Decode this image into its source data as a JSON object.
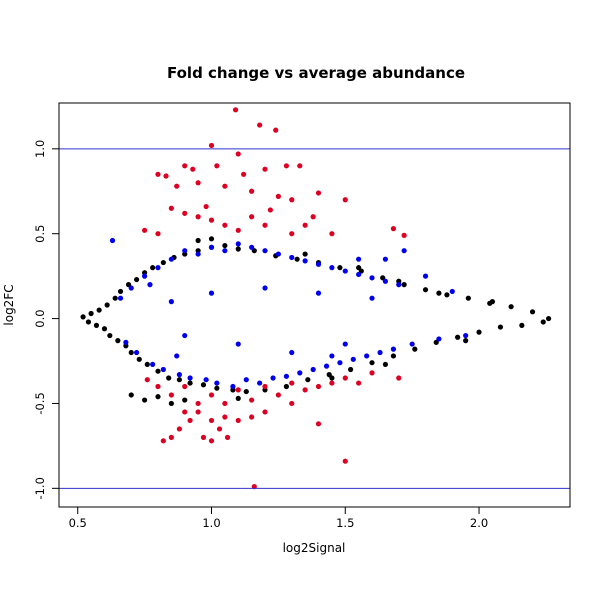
{
  "chart_data": {
    "type": "scatter",
    "title": "Fold change vs average abundance",
    "xlabel": "log2Signal",
    "ylabel": "log2FC",
    "xlim": [
      0.43,
      2.34
    ],
    "ylim": [
      -1.11,
      1.27
    ],
    "x_ticks": [
      0.5,
      1.0,
      1.5,
      2.0
    ],
    "y_ticks": [
      -1.0,
      -0.5,
      0.0,
      0.5,
      1.0
    ],
    "x_tick_labels": [
      "0.5",
      "1.0",
      "1.5",
      "2.0"
    ],
    "y_tick_labels": [
      "-1.0",
      "-0.5",
      "0.0",
      "0.5",
      "1.0"
    ],
    "reference_lines": [
      {
        "axis": "y",
        "value": 1.0,
        "color": "#3333cc"
      },
      {
        "axis": "y",
        "value": -1.0,
        "color": "#3333cc"
      }
    ],
    "grid": false,
    "legend": "none",
    "series": [
      {
        "color": "#000000",
        "description_of_density": "dense band around 0",
        "points": [
          [
            0.52,
            0.01
          ],
          [
            0.54,
            -0.02
          ],
          [
            0.55,
            0.03
          ],
          [
            0.57,
            -0.04
          ],
          [
            0.58,
            0.05
          ],
          [
            0.6,
            -0.06
          ],
          [
            0.61,
            0.08
          ],
          [
            0.62,
            -0.1
          ],
          [
            0.64,
            0.12
          ],
          [
            0.65,
            -0.13
          ],
          [
            0.66,
            0.16
          ],
          [
            0.68,
            -0.16
          ],
          [
            0.69,
            0.2
          ],
          [
            0.7,
            -0.2
          ],
          [
            0.72,
            0.23
          ],
          [
            0.73,
            -0.24
          ],
          [
            0.75,
            0.27
          ],
          [
            0.76,
            -0.27
          ],
          [
            0.78,
            0.3
          ],
          [
            0.8,
            -0.31
          ],
          [
            0.82,
            0.33
          ],
          [
            0.84,
            -0.35
          ],
          [
            0.86,
            0.36
          ],
          [
            0.88,
            -0.36
          ],
          [
            0.9,
            0.38
          ],
          [
            0.92,
            -0.38
          ],
          [
            0.95,
            0.4
          ],
          [
            0.97,
            -0.39
          ],
          [
            1.0,
            0.42
          ],
          [
            1.02,
            -0.41
          ],
          [
            1.05,
            0.43
          ],
          [
            1.08,
            -0.42
          ],
          [
            1.1,
            0.41
          ],
          [
            1.13,
            -0.43
          ],
          [
            1.16,
            0.4
          ],
          [
            1.2,
            -0.42
          ],
          [
            1.24,
            0.37
          ],
          [
            1.28,
            -0.4
          ],
          [
            1.32,
            0.35
          ],
          [
            1.36,
            -0.36
          ],
          [
            1.4,
            0.33
          ],
          [
            1.44,
            -0.33
          ],
          [
            1.48,
            0.3
          ],
          [
            1.52,
            -0.3
          ],
          [
            1.56,
            0.28
          ],
          [
            1.6,
            -0.26
          ],
          [
            1.64,
            0.24
          ],
          [
            1.68,
            -0.22
          ],
          [
            1.72,
            0.2
          ],
          [
            1.76,
            -0.18
          ],
          [
            1.8,
            0.17
          ],
          [
            1.84,
            -0.14
          ],
          [
            1.88,
            0.14
          ],
          [
            1.92,
            -0.11
          ],
          [
            1.96,
            0.12
          ],
          [
            2.0,
            -0.08
          ],
          [
            2.04,
            0.09
          ],
          [
            2.08,
            -0.05
          ],
          [
            2.12,
            0.07
          ],
          [
            2.16,
            -0.04
          ],
          [
            2.2,
            0.04
          ],
          [
            2.24,
            -0.02
          ],
          [
            2.26,
            0.0
          ],
          [
            0.7,
            -0.45
          ],
          [
            0.75,
            -0.48
          ],
          [
            0.8,
            -0.46
          ],
          [
            0.85,
            -0.5
          ],
          [
            0.9,
            -0.48
          ],
          [
            1.1,
            -0.47
          ],
          [
            1.0,
            0.47
          ],
          [
            0.95,
            0.46
          ],
          [
            1.7,
            0.22
          ],
          [
            1.85,
            0.15
          ],
          [
            1.95,
            -0.13
          ],
          [
            2.05,
            0.1
          ],
          [
            1.65,
            -0.27
          ],
          [
            1.35,
            0.38
          ],
          [
            1.45,
            -0.35
          ],
          [
            1.55,
            0.3
          ]
        ]
      },
      {
        "color": "#0000ee",
        "description_of_density": "moderate fold changes",
        "points": [
          [
            0.63,
            0.46
          ],
          [
            0.66,
            0.12
          ],
          [
            0.68,
            -0.14
          ],
          [
            0.7,
            0.18
          ],
          [
            0.72,
            -0.2
          ],
          [
            0.75,
            0.25
          ],
          [
            0.78,
            -0.27
          ],
          [
            0.8,
            0.3
          ],
          [
            0.82,
            -0.3
          ],
          [
            0.85,
            0.35
          ],
          [
            0.88,
            -0.33
          ],
          [
            0.9,
            0.4
          ],
          [
            0.92,
            -0.35
          ],
          [
            0.95,
            0.38
          ],
          [
            0.98,
            -0.36
          ],
          [
            1.0,
            0.42
          ],
          [
            1.02,
            -0.38
          ],
          [
            1.05,
            0.4
          ],
          [
            1.08,
            -0.4
          ],
          [
            1.1,
            0.44
          ],
          [
            1.13,
            -0.36
          ],
          [
            1.15,
            0.42
          ],
          [
            1.18,
            -0.38
          ],
          [
            1.2,
            0.4
          ],
          [
            1.23,
            -0.35
          ],
          [
            1.25,
            0.38
          ],
          [
            1.28,
            -0.34
          ],
          [
            1.3,
            0.36
          ],
          [
            1.33,
            -0.32
          ],
          [
            1.35,
            0.34
          ],
          [
            1.38,
            -0.3
          ],
          [
            1.4,
            0.32
          ],
          [
            1.43,
            -0.28
          ],
          [
            1.45,
            0.3
          ],
          [
            1.48,
            -0.26
          ],
          [
            1.5,
            0.28
          ],
          [
            1.53,
            -0.24
          ],
          [
            1.55,
            0.26
          ],
          [
            1.58,
            -0.22
          ],
          [
            1.6,
            0.24
          ],
          [
            1.63,
            -0.2
          ],
          [
            1.65,
            0.22
          ],
          [
            1.68,
            -0.18
          ],
          [
            1.7,
            0.2
          ],
          [
            1.72,
            0.4
          ],
          [
            1.75,
            -0.15
          ],
          [
            1.8,
            0.25
          ],
          [
            1.85,
            -0.12
          ],
          [
            1.9,
            0.16
          ],
          [
            1.95,
            -0.1
          ],
          [
            0.85,
            0.1
          ],
          [
            0.9,
            -0.1
          ],
          [
            1.0,
            0.15
          ],
          [
            1.1,
            -0.15
          ],
          [
            1.2,
            0.18
          ],
          [
            1.3,
            -0.2
          ],
          [
            1.4,
            0.15
          ],
          [
            1.5,
            -0.15
          ],
          [
            1.6,
            0.12
          ],
          [
            1.45,
            -0.22
          ],
          [
            1.55,
            0.35
          ],
          [
            1.65,
            0.35
          ],
          [
            0.77,
            0.2
          ],
          [
            0.87,
            -0.22
          ]
        ]
      },
      {
        "color": "#dd0022",
        "description_of_density": "large fold changes",
        "points": [
          [
            1.09,
            1.23
          ],
          [
            1.18,
            1.14
          ],
          [
            1.24,
            1.11
          ],
          [
            1.0,
            1.02
          ],
          [
            1.1,
            0.97
          ],
          [
            0.9,
            0.9
          ],
          [
            0.93,
            0.88
          ],
          [
            1.02,
            0.9
          ],
          [
            1.12,
            0.85
          ],
          [
            1.2,
            0.88
          ],
          [
            1.28,
            0.9
          ],
          [
            1.33,
            0.9
          ],
          [
            0.8,
            0.85
          ],
          [
            0.83,
            0.84
          ],
          [
            0.87,
            0.78
          ],
          [
            0.95,
            0.8
          ],
          [
            1.05,
            0.78
          ],
          [
            1.15,
            0.75
          ],
          [
            1.25,
            0.72
          ],
          [
            1.3,
            0.7
          ],
          [
            1.4,
            0.74
          ],
          [
            1.5,
            0.7
          ],
          [
            0.85,
            0.65
          ],
          [
            0.9,
            0.62
          ],
          [
            0.95,
            0.6
          ],
          [
            1.0,
            0.58
          ],
          [
            1.05,
            0.55
          ],
          [
            1.1,
            0.52
          ],
          [
            1.15,
            0.6
          ],
          [
            1.2,
            0.55
          ],
          [
            1.3,
            0.5
          ],
          [
            1.35,
            0.55
          ],
          [
            1.45,
            0.5
          ],
          [
            0.75,
            0.52
          ],
          [
            0.8,
            0.5
          ],
          [
            1.68,
            0.53
          ],
          [
            1.72,
            0.49
          ],
          [
            1.38,
            0.6
          ],
          [
            1.22,
            0.64
          ],
          [
            0.98,
            0.66
          ],
          [
            0.76,
            -0.36
          ],
          [
            0.8,
            -0.4
          ],
          [
            0.85,
            -0.45
          ],
          [
            0.9,
            -0.4
          ],
          [
            0.95,
            -0.5
          ],
          [
            1.0,
            -0.45
          ],
          [
            1.05,
            -0.5
          ],
          [
            1.1,
            -0.42
          ],
          [
            1.15,
            -0.48
          ],
          [
            1.2,
            -0.4
          ],
          [
            1.25,
            -0.45
          ],
          [
            1.3,
            -0.38
          ],
          [
            1.35,
            -0.42
          ],
          [
            1.4,
            -0.4
          ],
          [
            1.45,
            -0.38
          ],
          [
            1.5,
            -0.35
          ],
          [
            1.55,
            -0.38
          ],
          [
            1.6,
            -0.32
          ],
          [
            1.7,
            -0.35
          ],
          [
            0.85,
            -0.7
          ],
          [
            0.88,
            -0.65
          ],
          [
            0.92,
            -0.6
          ],
          [
            0.97,
            -0.7
          ],
          [
            1.0,
            -0.72
          ],
          [
            1.03,
            -0.65
          ],
          [
            1.06,
            -0.7
          ],
          [
            1.1,
            -0.6
          ],
          [
            1.15,
            -0.58
          ],
          [
            0.82,
            -0.72
          ],
          [
            1.5,
            -0.84
          ],
          [
            1.16,
            -0.99
          ],
          [
            0.95,
            -0.55
          ],
          [
            1.05,
            -0.58
          ],
          [
            1.2,
            -0.55
          ],
          [
            1.3,
            -0.5
          ],
          [
            1.4,
            -0.62
          ],
          [
            0.9,
            -0.55
          ],
          [
            1.0,
            -0.6
          ]
        ]
      }
    ]
  }
}
